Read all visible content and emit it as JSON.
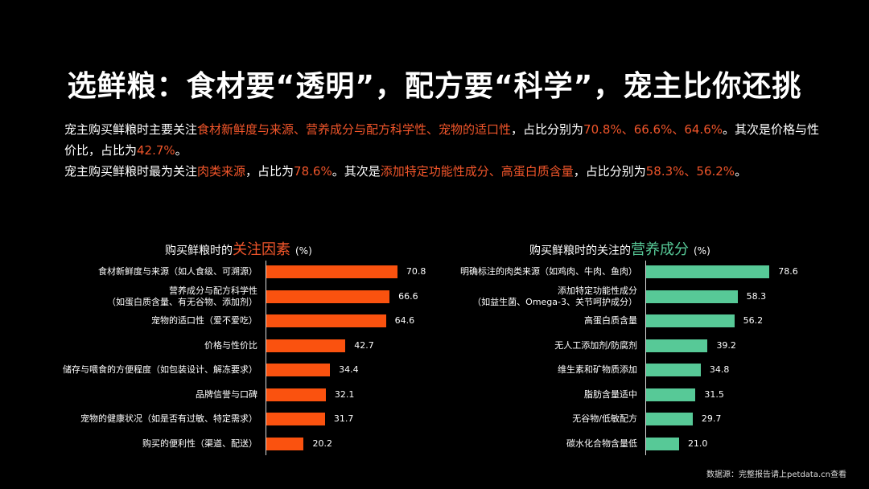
{
  "title": "选鲜粮：食材要“透明”，配方要“科学”，宠主比你还挑",
  "summary": {
    "line1": [
      {
        "t": "宠主购买鲜粮时主要关注",
        "hl": false
      },
      {
        "t": "食材新鲜度与来源、营养成分与配方科学性、宠物的适口性",
        "hl": true
      },
      {
        "t": "，占比分别为",
        "hl": false
      },
      {
        "t": "70.8%、66.6%、64.6%",
        "hl": true
      },
      {
        "t": "。其次是价格与性价比，占比为",
        "hl": false
      },
      {
        "t": "42.7%",
        "hl": true
      },
      {
        "t": "。",
        "hl": false
      }
    ],
    "line2": [
      {
        "t": "宠主购买鲜粮时最为关注",
        "hl": false
      },
      {
        "t": "肉类来源",
        "hl": true
      },
      {
        "t": "，占比为",
        "hl": false
      },
      {
        "t": "78.6%",
        "hl": true
      },
      {
        "t": "。其次是",
        "hl": false
      },
      {
        "t": "添加特定功能性成分、高蛋白质含量",
        "hl": true
      },
      {
        "t": "，占比分别为",
        "hl": false
      },
      {
        "t": "58.3%、56.2%",
        "hl": true
      },
      {
        "t": "。",
        "hl": false
      }
    ]
  },
  "colors": {
    "orange": "#fa520f",
    "green": "#57c997",
    "highlight": "#f0552a",
    "background": "#000000"
  },
  "chart_data": [
    {
      "type": "bar",
      "orientation": "horizontal",
      "title_prefix": "购买鲜粮时的",
      "title_accent": "关注因素",
      "title_unit": "(%)",
      "color": "#fa520f",
      "categories": [
        [
          "食材新鲜度与来源（如人食级、可溯源）"
        ],
        [
          "营养成分与配方科学性",
          "（如蛋白质含量、有无谷物、添加剂）"
        ],
        [
          "宠物的适口性（爱不爱吃）"
        ],
        [
          "价格与性价比"
        ],
        [
          "储存与喂食的方便程度（如包装设计、解冻要求）"
        ],
        [
          "品牌信誉与口碑"
        ],
        [
          "宠物的健康状况（如是否有过敏、特定需求）"
        ],
        [
          "购买的便利性（渠道、配送）"
        ]
      ],
      "values": [
        70.8,
        66.6,
        64.6,
        42.7,
        34.4,
        32.1,
        31.7,
        20.2
      ],
      "labels": [
        "70.8",
        "66.6",
        "64.6",
        "42.7",
        "34.4",
        "32.1",
        "31.7",
        "20.2"
      ],
      "xlabel": "",
      "ylabel": "",
      "grid": false
    },
    {
      "type": "bar",
      "orientation": "horizontal",
      "title_prefix": "购买鲜粮时的关注的",
      "title_accent": "营养成分",
      "title_unit": "(%)",
      "color": "#57c997",
      "categories": [
        [
          "明确标注的肉类来源（如鸡肉、牛肉、鱼肉）"
        ],
        [
          "添加特定功能性成分",
          "（如益生菌、Omega-3、关节呵护成分）"
        ],
        [
          "高蛋白质含量"
        ],
        [
          "无人工添加剂/防腐剂"
        ],
        [
          "维生素和矿物质添加"
        ],
        [
          "脂肪含量适中"
        ],
        [
          "无谷物/低敏配方"
        ],
        [
          "碳水化合物含量低"
        ]
      ],
      "values": [
        78.6,
        58.3,
        56.2,
        39.2,
        34.8,
        31.5,
        29.7,
        21.0
      ],
      "labels": [
        "78.6",
        "58.3",
        "56.2",
        "39.2",
        "34.8",
        "31.5",
        "29.7",
        "21.0"
      ],
      "xlabel": "",
      "ylabel": "",
      "grid": false
    }
  ],
  "footer": "数据源：完整报告请上petdata.cn查看"
}
